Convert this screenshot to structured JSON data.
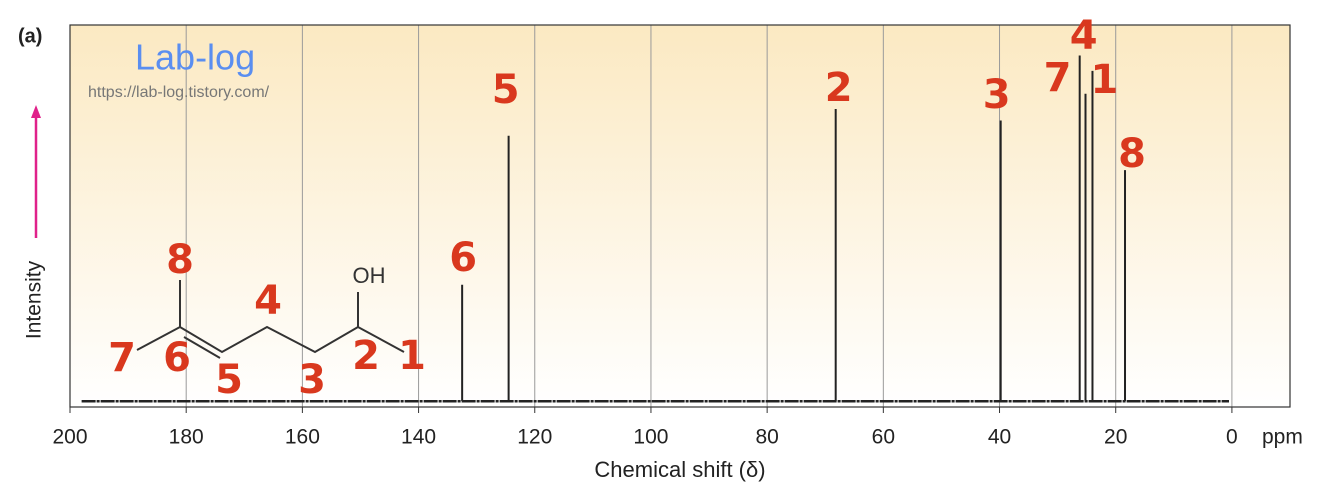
{
  "panel_label": "(a)",
  "watermark": {
    "title": "Lab-log",
    "url": "https://lab-log.tistory.com/"
  },
  "structure": {
    "substituent": "OH",
    "atom_labels": [
      "8",
      "7",
      "6",
      "5",
      "4",
      "3",
      "2",
      "1"
    ]
  },
  "chart_data": {
    "type": "spectrum",
    "x_label": "Chemical shift (δ)",
    "x_unit": "ppm",
    "y_label": "Intensity",
    "x": [
      132.5,
      124.5,
      68.2,
      39.8,
      26.2,
      25.2,
      24.0,
      18.4
    ],
    "values": [
      32,
      71,
      78,
      75,
      92,
      82,
      88,
      62
    ],
    "peak_labels": [
      "6",
      "5",
      "2",
      "3",
      "4",
      "7",
      "1",
      "8"
    ],
    "baseline": 1.5,
    "color": "#222222",
    "label_color": "#d9381e",
    "xlim": [
      200,
      -10
    ],
    "ylim": [
      0,
      100
    ],
    "xticks": [
      200,
      180,
      160,
      140,
      120,
      100,
      80,
      60,
      40,
      20,
      0
    ],
    "grid": true
  }
}
